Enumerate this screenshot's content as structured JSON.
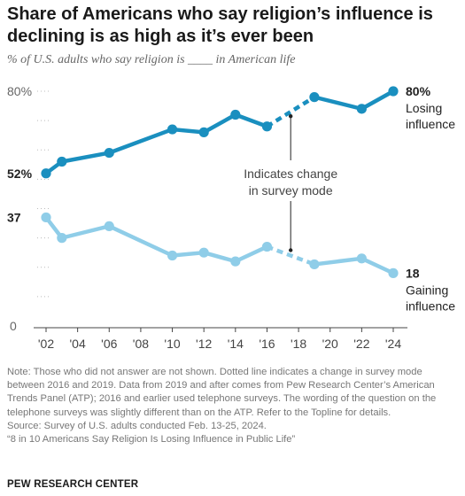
{
  "title": "Share of Americans who say religion’s influence is declining is as high as it’s ever been",
  "subtitle": "% of U.S. adults who say religion is ____ in American life",
  "colors": {
    "losing": "#1a8fbf",
    "gaining": "#8fcde8",
    "axis_text": "#666666",
    "grid": "#bbbbbb"
  },
  "chart_data": {
    "type": "line",
    "x": [
      "2002",
      "2003",
      "2006",
      "2010",
      "2012",
      "2014",
      "2016",
      "2019",
      "2022",
      "2024"
    ],
    "x_tick_labels": [
      "'02",
      "'04",
      "'06",
      "'08",
      "'10",
      "'12",
      "'14",
      "'16",
      "'18",
      "'20",
      "'22",
      "'24"
    ],
    "y_tick_labels": [
      "80%",
      "0"
    ],
    "ylim": [
      0,
      80
    ],
    "series": [
      {
        "name": "Losing influence",
        "key": "losing",
        "values": [
          52,
          56,
          59,
          67,
          66,
          72,
          68,
          78,
          74,
          80
        ],
        "start_label": "52%",
        "end_label": "80%",
        "label_lines": [
          "Losing",
          "influence"
        ]
      },
      {
        "name": "Gaining influence",
        "key": "gaining",
        "values": [
          37,
          30,
          34,
          24,
          25,
          22,
          27,
          21,
          23,
          18
        ],
        "start_label": "37",
        "end_label": "18",
        "label_lines": [
          "Gaining",
          "influence"
        ]
      }
    ],
    "mode_change": {
      "from": "2016",
      "to": "2019"
    },
    "annotation": [
      "Indicates change",
      "in survey mode"
    ]
  },
  "notes": [
    "Note: Those who did not answer are not shown. Dotted line indicates a change in survey mode between 2016 and 2019. Data from 2019 and after comes from Pew Research Center’s American Trends Panel (ATP); 2016 and earlier used telephone surveys. The wording of the question on the telephone surveys was slightly different than on the ATP. Refer to the Topline for details.",
    "Source: Survey of U.S. adults conducted Feb. 13-25, 2024.",
    "“8 in 10 Americans Say Religion Is Losing Influence in Public Life”"
  ],
  "source_label": "PEW RESEARCH CENTER"
}
